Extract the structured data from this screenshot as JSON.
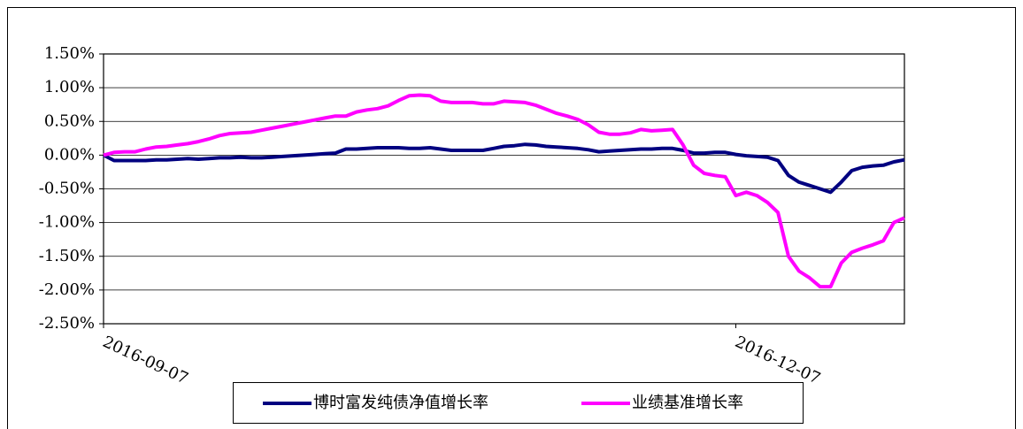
{
  "chart_data": {
    "type": "line",
    "categories": [
      "2016-09-07",
      null,
      null,
      null,
      null,
      null,
      null,
      null,
      null,
      null,
      null,
      null,
      null,
      null,
      null,
      null,
      null,
      null,
      null,
      null,
      null,
      null,
      null,
      null,
      null,
      null,
      null,
      null,
      null,
      null,
      null,
      null,
      null,
      null,
      null,
      null,
      null,
      null,
      null,
      null,
      null,
      null,
      null,
      null,
      null,
      null,
      null,
      null,
      null,
      null,
      null,
      null,
      null,
      null,
      null,
      null,
      null,
      null,
      null,
      null,
      "2016-12-07",
      null,
      null,
      null,
      null,
      null,
      null,
      null,
      null,
      null,
      null,
      null,
      null,
      null,
      null,
      null,
      null
    ],
    "series": [
      {
        "name": "博时富发纯债净值增长率",
        "color": "#000080",
        "values": [
          0,
          -0.08,
          -0.08,
          -0.08,
          -0.08,
          -0.07,
          -0.07,
          -0.06,
          -0.05,
          -0.06,
          -0.05,
          -0.04,
          -0.04,
          -0.03,
          -0.04,
          -0.04,
          -0.03,
          -0.02,
          -0.01,
          0,
          0.01,
          0.02,
          0.03,
          0.09,
          0.09,
          0.1,
          0.11,
          0.11,
          0.11,
          0.1,
          0.1,
          0.11,
          0.09,
          0.07,
          0.07,
          0.07,
          0.07,
          0.1,
          0.13,
          0.14,
          0.16,
          0.15,
          0.13,
          0.12,
          0.11,
          0.1,
          0.08,
          0.05,
          0.06,
          0.07,
          0.08,
          0.09,
          0.09,
          0.1,
          0.1,
          0.07,
          0.03,
          0.03,
          0.04,
          0.04,
          0.01,
          -0.01,
          -0.02,
          -0.03,
          -0.08,
          -0.3,
          -0.4,
          -0.45,
          -0.5,
          -0.55,
          -0.4,
          -0.23,
          -0.18,
          -0.16,
          -0.15,
          -0.1,
          -0.07
        ]
      },
      {
        "name": "业绩基准增长率",
        "color": "#ff00ff",
        "values": [
          0,
          0.04,
          0.05,
          0.05,
          0.09,
          0.12,
          0.13,
          0.15,
          0.17,
          0.2,
          0.24,
          0.29,
          0.32,
          0.33,
          0.34,
          0.37,
          0.4,
          0.43,
          0.46,
          0.49,
          0.52,
          0.55,
          0.58,
          0.58,
          0.64,
          0.67,
          0.69,
          0.73,
          0.81,
          0.88,
          0.89,
          0.88,
          0.8,
          0.78,
          0.78,
          0.78,
          0.76,
          0.76,
          0.8,
          0.79,
          0.78,
          0.74,
          0.68,
          0.62,
          0.58,
          0.53,
          0.45,
          0.34,
          0.31,
          0.31,
          0.33,
          0.38,
          0.36,
          0.37,
          0.38,
          0.15,
          -0.15,
          -0.27,
          -0.3,
          -0.32,
          -0.6,
          -0.55,
          -0.6,
          -0.7,
          -0.85,
          -1.5,
          -1.72,
          -1.82,
          -1.95,
          -1.95,
          -1.6,
          -1.44,
          -1.38,
          -1.33,
          -1.27,
          -1.0,
          -0.93
        ]
      }
    ],
    "ylim": [
      -2.5,
      1.5
    ],
    "yticks": [
      {
        "value": -2.5,
        "label": "-2.50%"
      },
      {
        "value": -2.0,
        "label": "-2.00%"
      },
      {
        "value": -1.5,
        "label": "-1.50%"
      },
      {
        "value": -1.0,
        "label": "-1.00%"
      },
      {
        "value": -0.5,
        "label": "-0.50%"
      },
      {
        "value": 0,
        "label": "0.00%"
      },
      {
        "value": 0.5,
        "label": "0.50%"
      },
      {
        "value": 1.0,
        "label": "1.00%"
      },
      {
        "value": 1.5,
        "label": "1.50%"
      }
    ],
    "grid": true
  }
}
